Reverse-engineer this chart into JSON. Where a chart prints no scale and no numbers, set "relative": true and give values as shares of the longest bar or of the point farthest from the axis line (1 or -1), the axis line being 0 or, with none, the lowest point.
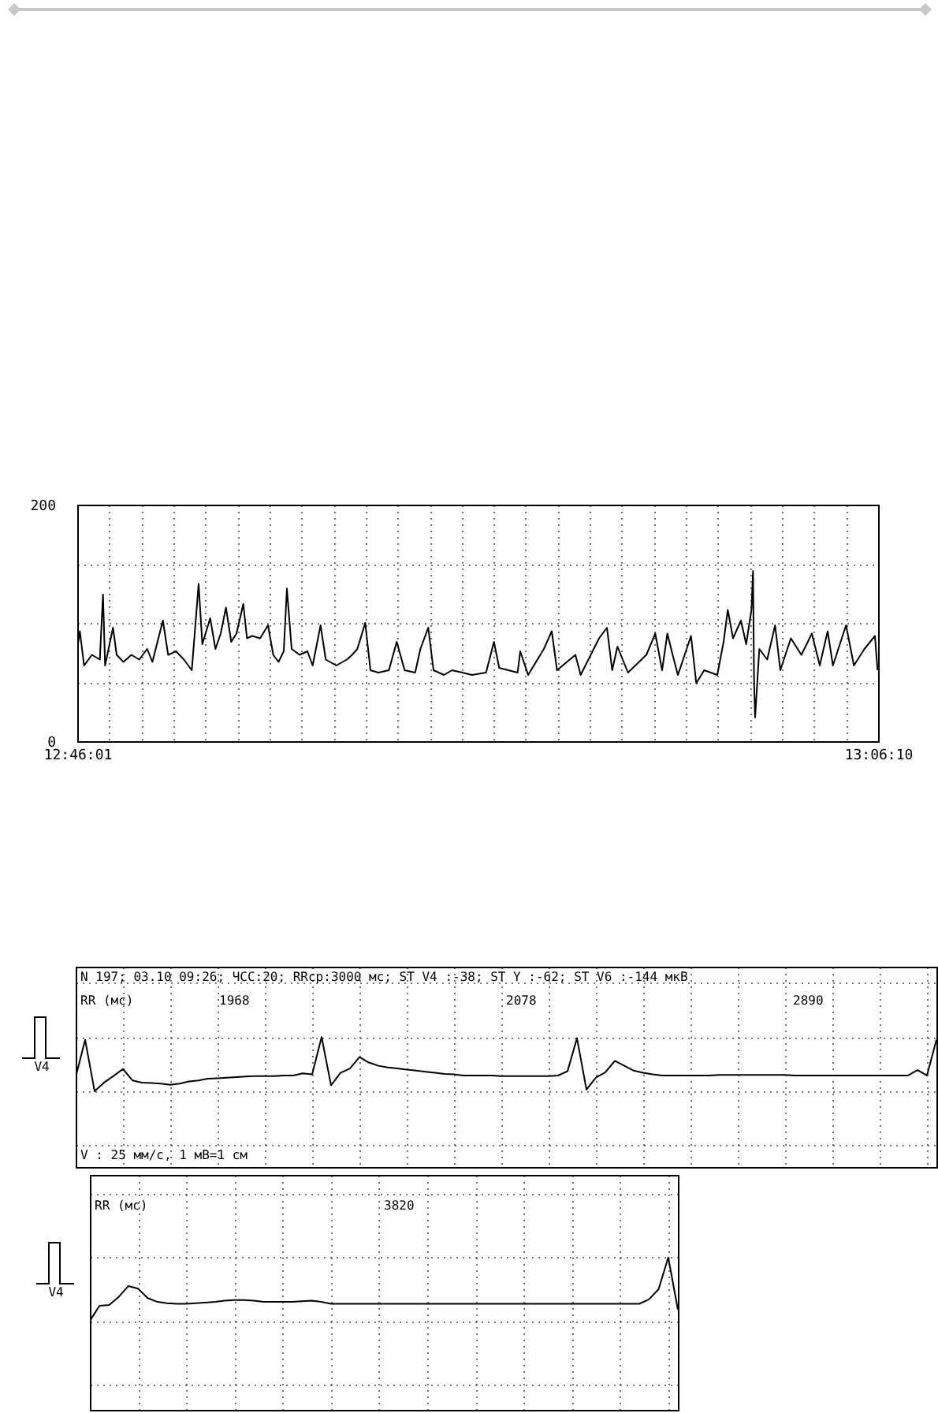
{
  "chart_data": [
    {
      "type": "line",
      "color": "#000000",
      "marker": "none",
      "line_style": "solid",
      "grid": true,
      "xlim": [
        12.76694,
        13.10278
      ],
      "xticks": [
        {
          "value": 12.76694,
          "label": "12:46:01"
        },
        {
          "value": 12.78038,
          "label": null
        },
        {
          "value": 12.79381,
          "label": null
        },
        {
          "value": 12.80724,
          "label": null
        },
        {
          "value": 12.82068,
          "label": null
        },
        {
          "value": 12.83411,
          "label": null
        },
        {
          "value": 12.84754,
          "label": null
        },
        {
          "value": 12.86098,
          "label": null
        },
        {
          "value": 12.87441,
          "label": null
        },
        {
          "value": 12.88784,
          "label": null
        },
        {
          "value": 12.90128,
          "label": null
        },
        {
          "value": 12.91471,
          "label": null
        },
        {
          "value": 12.92814,
          "label": null
        },
        {
          "value": 12.94158,
          "label": null
        },
        {
          "value": 12.95501,
          "label": null
        },
        {
          "value": 12.96844,
          "label": null
        },
        {
          "value": 12.98188,
          "label": null
        },
        {
          "value": 12.99531,
          "label": null
        },
        {
          "value": 13.00874,
          "label": null
        },
        {
          "value": 13.02218,
          "label": null
        },
        {
          "value": 13.03561,
          "label": null
        },
        {
          "value": 13.04904,
          "label": null
        },
        {
          "value": 13.06248,
          "label": null
        },
        {
          "value": 13.07591,
          "label": null
        },
        {
          "value": 13.08934,
          "label": null
        },
        {
          "value": 13.10278,
          "label": "13:06:10"
        }
      ],
      "ylim": [
        0,
        200
      ],
      "yticks": [
        0,
        {
          "value": 50,
          "label": null
        },
        {
          "value": 100,
          "label": null
        },
        {
          "value": 150,
          "label": null
        },
        200
      ],
      "x": [
        12.76694,
        12.76804,
        12.7698,
        12.77311,
        12.77641,
        12.77774,
        12.77862,
        12.78193,
        12.78347,
        12.78633,
        12.78964,
        12.79294,
        12.79625,
        12.79845,
        12.80286,
        12.80506,
        12.80837,
        12.81168,
        12.81498,
        12.81784,
        12.81939,
        12.82269,
        12.8249,
        12.8271,
        12.8293,
        12.83151,
        12.83371,
        12.83657,
        12.83812,
        12.84032,
        12.84363,
        12.84693,
        12.84914,
        12.85134,
        12.85354,
        12.85486,
        12.85685,
        12.86016,
        12.86346,
        12.86566,
        12.86897,
        12.87117,
        12.87558,
        12.87999,
        12.88219,
        12.8844,
        12.8877,
        12.8899,
        12.89321,
        12.89762,
        12.90092,
        12.90423,
        12.90864,
        12.91084,
        12.91414,
        12.91635,
        12.92076,
        12.92406,
        12.92847,
        12.93243,
        12.93838,
        12.94169,
        12.94389,
        12.95161,
        12.95271,
        12.95602,
        12.96263,
        12.96593,
        12.96814,
        12.97585,
        12.97805,
        12.98577,
        12.98907,
        12.99127,
        12.99348,
        12.99789,
        13.0056,
        13.00934,
        13.01221,
        13.01441,
        13.01662,
        13.01882,
        13.02433,
        13.02653,
        13.02984,
        13.03535,
        13.03799,
        13.03975,
        13.04195,
        13.04526,
        13.04746,
        13.04967,
        13.05033,
        13.05077,
        13.05121,
        13.05297,
        13.05628,
        13.05958,
        13.06179,
        13.0662,
        13.0706,
        13.07501,
        13.07832,
        13.08162,
        13.08383,
        13.08934,
        13.09264,
        13.09705,
        13.10146,
        13.10256
      ],
      "values": [
        78,
        93,
        64,
        73,
        69,
        124,
        64,
        96,
        73,
        67,
        73,
        69,
        78,
        67,
        102,
        73,
        76,
        69,
        60,
        133,
        82,
        104,
        78,
        91,
        113,
        84,
        91,
        116,
        87,
        89,
        87,
        98,
        73,
        67,
        76,
        129,
        78,
        73,
        76,
        64,
        98,
        69,
        64,
        69,
        73,
        78,
        100,
        60,
        58,
        60,
        84,
        60,
        58,
        78,
        96,
        60,
        56,
        60,
        58,
        56,
        58,
        84,
        62,
        58,
        76,
        56,
        78,
        93,
        60,
        73,
        56,
        87,
        96,
        60,
        80,
        58,
        73,
        91,
        60,
        91,
        73,
        56,
        89,
        49,
        60,
        56,
        84,
        111,
        87,
        102,
        82,
        111,
        144,
        51,
        20,
        78,
        69,
        98,
        60,
        87,
        73,
        91,
        64,
        93,
        64,
        98,
        64,
        78,
        89,
        60
      ]
    },
    {
      "type": "line",
      "relative": true,
      "color": "#000000",
      "marker": "none",
      "line_style": "solid",
      "grid": true,
      "title": "N 197; 03.10 09:26; ЧСС:20; RRср:3000 мс; ST V4 :-38; ST Y  :-62; ST V6 :-144 мкВ",
      "ylabel": "V4",
      "xlabel": "V : 25 мм/с, 1 мВ=1 см",
      "annotations": [
        "RR (мс)",
        "1968",
        "2078",
        "2890"
      ],
      "categories": [
        null,
        null,
        null,
        null,
        null,
        null,
        null,
        null,
        null,
        null,
        null,
        null,
        null,
        null,
        null,
        null,
        null,
        null,
        null,
        null,
        null,
        null,
        null,
        null,
        null,
        null,
        null,
        null,
        null,
        null,
        null,
        null,
        null,
        null,
        null,
        null,
        null,
        null,
        null,
        null,
        null,
        null,
        null,
        null,
        null,
        null,
        null,
        null,
        null,
        null,
        null,
        null,
        null,
        null,
        null,
        null,
        null,
        null,
        null,
        null,
        null,
        null,
        null,
        null,
        null,
        null,
        null,
        null,
        null,
        null,
        null,
        null,
        null,
        null,
        null,
        null,
        null,
        null,
        null,
        null,
        null,
        null,
        null,
        null,
        null,
        null,
        null,
        null,
        null,
        null,
        null,
        null
      ],
      "values": [
        0.26,
        0.95,
        0.0,
        0.16,
        0.28,
        0.41,
        0.2,
        0.16,
        0.15,
        0.14,
        0.12,
        0.14,
        0.18,
        0.2,
        0.23,
        0.24,
        0.25,
        0.26,
        0.27,
        0.28,
        0.28,
        0.28,
        0.29,
        0.29,
        0.33,
        0.31,
        1.0,
        0.11,
        0.34,
        0.42,
        0.63,
        0.53,
        0.47,
        0.44,
        0.42,
        0.4,
        0.38,
        0.36,
        0.34,
        0.32,
        0.31,
        0.29,
        0.29,
        0.29,
        0.29,
        0.28,
        0.28,
        0.28,
        0.28,
        0.28,
        0.28,
        0.29,
        0.37,
        0.98,
        0.03,
        0.25,
        0.35,
        0.56,
        0.47,
        0.38,
        0.34,
        0.31,
        0.29,
        0.29,
        0.29,
        0.29,
        0.29,
        0.29,
        0.3,
        0.3,
        0.3,
        0.3,
        0.3,
        0.3,
        0.3,
        0.3,
        0.29,
        0.29,
        0.29,
        0.29,
        0.29,
        0.29,
        0.29,
        0.29,
        0.29,
        0.29,
        0.29,
        0.29,
        0.29,
        0.39,
        0.29,
        0.95
      ]
    },
    {
      "type": "line",
      "relative": true,
      "color": "#000000",
      "marker": "none",
      "line_style": "solid",
      "grid": true,
      "ylabel": "V4",
      "annotations": [
        "RR (мс)",
        "3820"
      ],
      "categories": [
        null,
        null,
        null,
        null,
        null,
        null,
        null,
        null,
        null,
        null,
        null,
        null,
        null,
        null,
        null,
        null,
        null,
        null,
        null,
        null,
        null,
        null,
        null,
        null,
        null,
        null,
        null,
        null,
        null,
        null,
        null,
        null,
        null,
        null,
        null,
        null,
        null,
        null,
        null,
        null,
        null,
        null,
        null,
        null,
        null,
        null,
        null,
        null,
        null,
        null,
        null,
        null,
        null,
        null,
        null,
        null,
        null,
        null,
        null,
        null,
        null,
        null
      ],
      "values": [
        0.0,
        0.24,
        0.25,
        0.38,
        0.55,
        0.51,
        0.36,
        0.3,
        0.28,
        0.27,
        0.27,
        0.28,
        0.29,
        0.3,
        0.32,
        0.33,
        0.33,
        0.32,
        0.3,
        0.3,
        0.3,
        0.3,
        0.31,
        0.32,
        0.3,
        0.27,
        0.27,
        0.27,
        0.27,
        0.27,
        0.27,
        0.27,
        0.27,
        0.27,
        0.27,
        0.27,
        0.27,
        0.27,
        0.27,
        0.27,
        0.27,
        0.27,
        0.27,
        0.27,
        0.27,
        0.27,
        0.27,
        0.27,
        0.27,
        0.27,
        0.27,
        0.27,
        0.27,
        0.27,
        0.27,
        0.27,
        0.27,
        0.27,
        0.34,
        0.5,
        1.0,
        0.18
      ]
    }
  ]
}
